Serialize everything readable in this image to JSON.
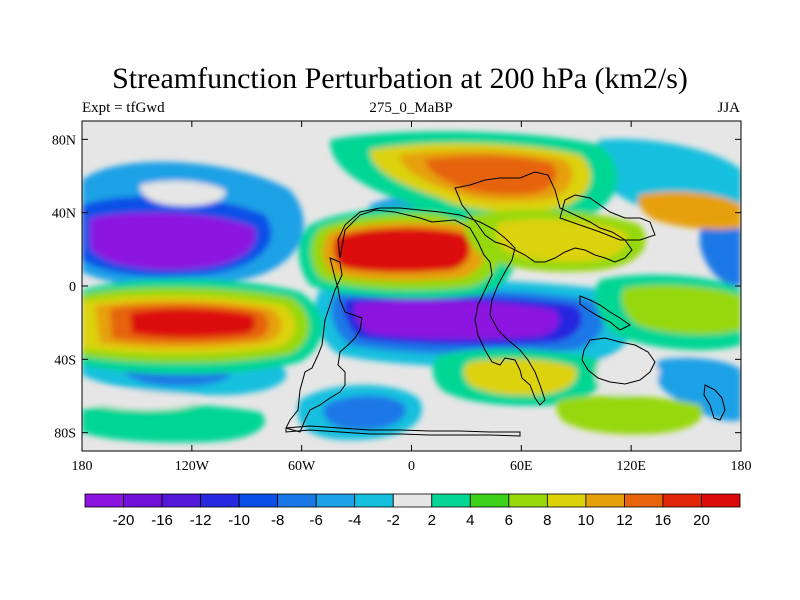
{
  "title": "Streamfunction Perturbation at 200 hPa (km2/s)",
  "subtitle_left": "Expt = tfGwd",
  "subtitle_center": "275_0_MaBP",
  "subtitle_right": "JJA",
  "lon_ticks": [
    {
      "value": -180,
      "label": "180"
    },
    {
      "value": -120,
      "label": "120W"
    },
    {
      "value": -60,
      "label": "60W"
    },
    {
      "value": 0,
      "label": "0"
    },
    {
      "value": 60,
      "label": "60E"
    },
    {
      "value": 120,
      "label": "120E"
    },
    {
      "value": 180,
      "label": "180"
    }
  ],
  "lat_ticks": [
    {
      "value": 80,
      "label": "80N"
    },
    {
      "value": 40,
      "label": "40N"
    },
    {
      "value": 0,
      "label": "0"
    },
    {
      "value": -40,
      "label": "40S"
    },
    {
      "value": -80,
      "label": "80S"
    }
  ],
  "map_extent": {
    "lon": [
      -180,
      180
    ],
    "lat": [
      -90,
      90
    ]
  },
  "colorbar": {
    "levels": [
      "-20",
      "-16",
      "-12",
      "-10",
      "-8",
      "-6",
      "-4",
      "-2",
      "2",
      "4",
      "6",
      "8",
      "10",
      "12",
      "16",
      "20"
    ],
    "colors": [
      "#8c14e0",
      "#7010d8",
      "#5418d8",
      "#2828e0",
      "#0a50e6",
      "#1a78e6",
      "#1ea0e6",
      "#14c0de",
      "#e6e6e6",
      "#06d694",
      "#3cd21a",
      "#96d80a",
      "#dcd20a",
      "#e6a00a",
      "#e6640a",
      "#e2260a",
      "#dc0a0a"
    ]
  },
  "field_features": [
    {
      "name": "tropical-south-east-pacific-high",
      "lon": -110,
      "lat": -15,
      "value": 22
    },
    {
      "name": "west-african-high",
      "lon": -5,
      "lat": 20,
      "value": 20
    },
    {
      "name": "asian-north-high",
      "lon": 65,
      "lat": 65,
      "value": 16
    },
    {
      "name": "north-pacific-low",
      "lon": -115,
      "lat": 25,
      "value": -20
    },
    {
      "name": "indian-ocean-low",
      "lon": 40,
      "lat": -15,
      "value": -22
    },
    {
      "name": "south-pacific-low",
      "lon": -125,
      "lat": -50,
      "value": -6
    },
    {
      "name": "south-atlantic-low",
      "lon": -15,
      "lat": -65,
      "value": -6
    }
  ]
}
